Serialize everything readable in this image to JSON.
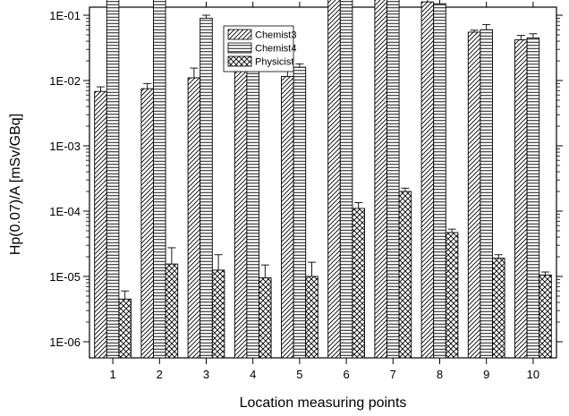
{
  "chart_data": {
    "type": "bar",
    "title": "",
    "xlabel": "Location measuring points",
    "ylabel": "Hp(0.07)/A [mSv/GBq]",
    "y_scale": "log",
    "ylim": [
      1e-06,
      1
    ],
    "y_ticks": [
      {
        "value": 1e-06,
        "label": "1E-06"
      },
      {
        "value": 1e-05,
        "label": "1E-05"
      },
      {
        "value": 0.0001,
        "label": "1E-04"
      },
      {
        "value": 0.001,
        "label": "1E-03"
      },
      {
        "value": 0.01,
        "label": "1E-02"
      },
      {
        "value": 0.1,
        "label": "1E-01"
      }
    ],
    "categories": [
      "1",
      "2",
      "3",
      "4",
      "5",
      "6",
      "7",
      "8",
      "9",
      "10"
    ],
    "series": [
      {
        "name": "Chemist3",
        "pattern": "diagonal",
        "values": [
          0.0068,
          0.0075,
          0.011,
          0.014,
          0.0115,
          0.62,
          0.65,
          0.16,
          0.055,
          0.042
        ],
        "errors": [
          0.0012,
          0.0015,
          0.0045,
          0.007,
          0.0025,
          0.06,
          0.15,
          0.035,
          0.004,
          0.007
        ]
      },
      {
        "name": "Chemist4",
        "pattern": "horizontal",
        "values": [
          0.21,
          0.22,
          0.09,
          0.032,
          0.016,
          0.26,
          0.38,
          0.15,
          0.06,
          0.045
        ],
        "errors": [
          0.012,
          0.015,
          0.01,
          0.005,
          0.002,
          0.05,
          0.08,
          0.03,
          0.012,
          0.007
        ]
      },
      {
        "name": "Physicist",
        "pattern": "crosshatch",
        "values": [
          4.5e-06,
          1.55e-05,
          1.25e-05,
          9.5e-06,
          1e-05,
          0.00011,
          0.0002,
          4.7e-05,
          1.9e-05,
          1.05e-05
        ],
        "errors": [
          1.5e-06,
          1.2e-05,
          9e-06,
          5.5e-06,
          6.5e-06,
          2.5e-05,
          2.5e-05,
          6e-06,
          2.5e-06,
          1.2e-06
        ]
      }
    ],
    "legend_position": "top-center",
    "grid": false
  }
}
